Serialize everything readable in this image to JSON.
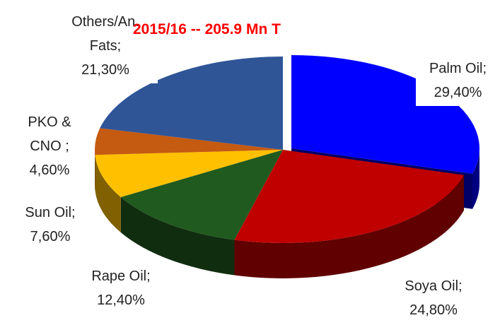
{
  "chart_data": {
    "type": "pie",
    "title": "2015/16 -- 205.9 Mn T",
    "categories": [
      "Palm Oil;",
      "Soya Oil;",
      "Rape Oil;",
      "Sun Oil;",
      "PKO & CNO ;",
      "Others/An. Fats;"
    ],
    "values": [
      29.4,
      24.8,
      12.4,
      7.6,
      4.6,
      21.3
    ],
    "value_labels": [
      "29,40%",
      "24,80%",
      "12,40%",
      "7,60%",
      "4,60%",
      "21,30%"
    ],
    "colors": [
      "#0000ff",
      "#c00000",
      "#215a1f",
      "#ffc000",
      "#c55a11",
      "#2f5597"
    ]
  }
}
